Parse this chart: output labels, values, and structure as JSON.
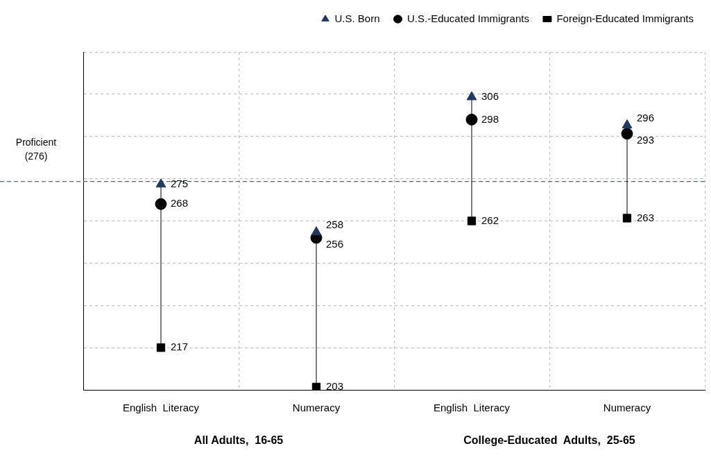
{
  "chart_data": {
    "type": "scatter",
    "categories": [
      "English  Literacy",
      "Numeracy",
      "English  Literacy",
      "Numeracy"
    ],
    "series": [
      {
        "name": "U.S. Born",
        "color": "#1f3a5f",
        "marker": "triangle",
        "values": [
          275,
          258,
          306,
          296
        ]
      },
      {
        "name": "U.S.-Educated Immigrants",
        "color": "#000000",
        "marker": "circle",
        "values": [
          268,
          256,
          298,
          293
        ]
      },
      {
        "name": "Foreign-Educated Immigrants",
        "color": "#000000",
        "marker": "square",
        "values": [
          217,
          203,
          262,
          263
        ]
      }
    ],
    "ylim": [
      202,
      322
    ],
    "yticks": [
      {
        "value": 202,
        "label": null
      },
      {
        "value": 217,
        "label": null
      },
      {
        "value": 232,
        "label": null
      },
      {
        "value": 247,
        "label": null
      },
      {
        "value": 262,
        "label": null
      },
      {
        "value": 277,
        "label": null
      },
      {
        "value": 292,
        "label": null
      },
      {
        "value": 307,
        "label": null
      },
      {
        "value": 322,
        "label": null
      }
    ],
    "tick_labels": "x",
    "grid": true,
    "legend": "top",
    "data_labels": true,
    "ref_lines": [
      {
        "axis": "y",
        "value": 276,
        "label": "Proficient\n(276)",
        "color": "#2a7f7f",
        "line_style": "dashed"
      }
    ],
    "annotations": [
      "All Adults,  16-65",
      "College-Educated  Adults,  25-65"
    ]
  }
}
